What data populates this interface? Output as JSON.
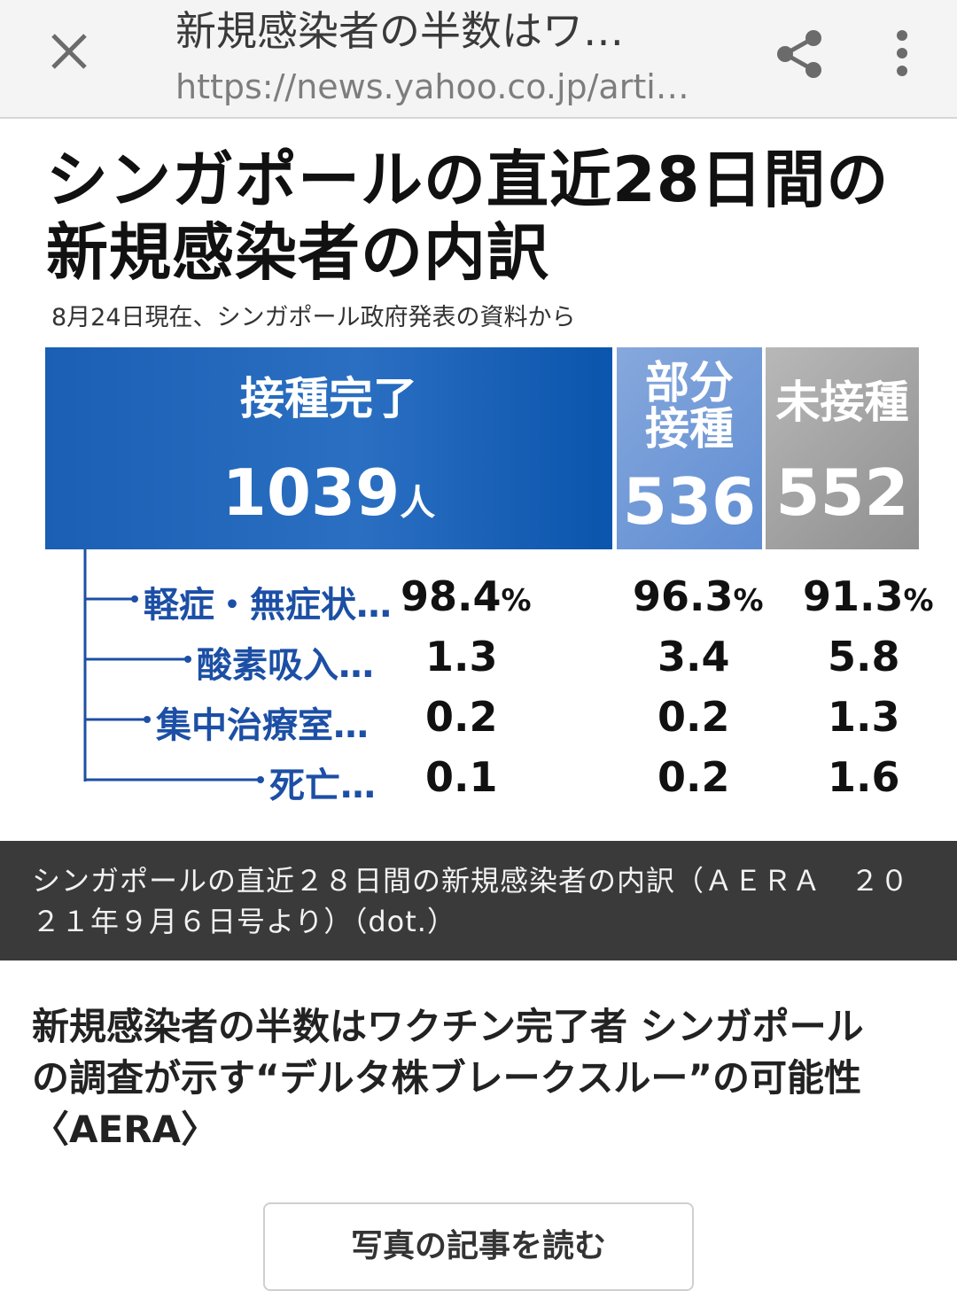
{
  "browser": {
    "page_title": "新規感染者の半数はワ…",
    "page_url": "https://news.yahoo.co.jp/arti…"
  },
  "figure": {
    "title_line1": "シンガポールの直近28日間の",
    "title_line2": "新規感染者の内訳",
    "subtitle": "8月24日現在、シンガポール政府発表の資料から",
    "colors": {
      "done": "#1a5fb4",
      "partial": "#6f97d6",
      "none": "#a3a3a3",
      "category_text": "#1c4fa5"
    },
    "groups": [
      {
        "label": "接種完了",
        "total": "1039",
        "unit": "人"
      },
      {
        "label_line1": "部分",
        "label_line2": "接種",
        "total": "536"
      },
      {
        "label": "未接種",
        "total": "552"
      }
    ],
    "rows": [
      {
        "category": "軽症・無症状…",
        "done": "98.4",
        "partial": "96.3",
        "none": "91.3",
        "unit": "%"
      },
      {
        "category": "酸素吸入…",
        "done": "1.3",
        "partial": "3.4",
        "none": "5.8"
      },
      {
        "category": "集中治療室…",
        "done": "0.2",
        "partial": "0.2",
        "none": "1.3"
      },
      {
        "category": "死亡…",
        "done": "0.1",
        "partial": "0.2",
        "none": "1.6"
      }
    ]
  },
  "caption": {
    "line1": "シンガポールの直近２８日間の新規感染者の内訳（ＡＥＲＡ　２０",
    "line2": "２１年９月６日号より）（dot.）"
  },
  "article": {
    "headline_line1": "新規感染者の半数はワクチン完了者 シンガポール",
    "headline_line2": "の調査が示す“デルタ株ブレークスルー”の可能性",
    "headline_line3": "〈AERA〉",
    "read_button": "写真の記事を読む"
  }
}
